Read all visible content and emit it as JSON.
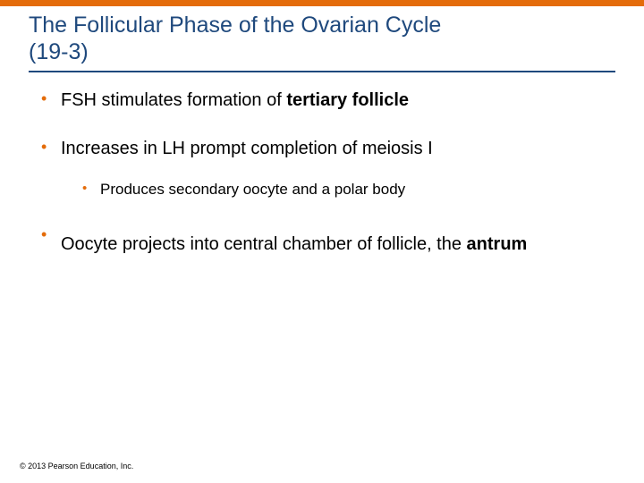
{
  "colors": {
    "accent": "#e46c0a",
    "title": "#1f497d",
    "underline": "#1f497d",
    "body_text": "#000000",
    "copyright": "#000000",
    "background": "#ffffff"
  },
  "typography": {
    "title_fontsize": 25,
    "body_fontsize": 20,
    "sub_fontsize": 17,
    "copyright_fontsize": 9,
    "font_family": "Arial"
  },
  "title": {
    "line1": "The Follicular Phase of the Ovarian Cycle",
    "line2": "(19-3)"
  },
  "bullets": [
    {
      "level": 1,
      "segments": [
        {
          "text": "FSH stimulates formation of ",
          "bold": false
        },
        {
          "text": "tertiary follicle",
          "bold": true
        }
      ]
    },
    {
      "level": 1,
      "segments": [
        {
          "text": "Increases in LH prompt completion of meiosis I",
          "bold": false
        }
      ]
    },
    {
      "level": 2,
      "segments": [
        {
          "text": "Produces secondary oocyte and a polar body",
          "bold": false
        }
      ]
    },
    {
      "level": 1,
      "segments": [
        {
          "text": "Oocyte projects into central chamber of follicle, the ",
          "bold": false
        },
        {
          "text": "antrum",
          "bold": true
        }
      ],
      "wrap_gap": true
    }
  ],
  "bullet_marker": "•",
  "copyright": "© 2013 Pearson Education, Inc."
}
